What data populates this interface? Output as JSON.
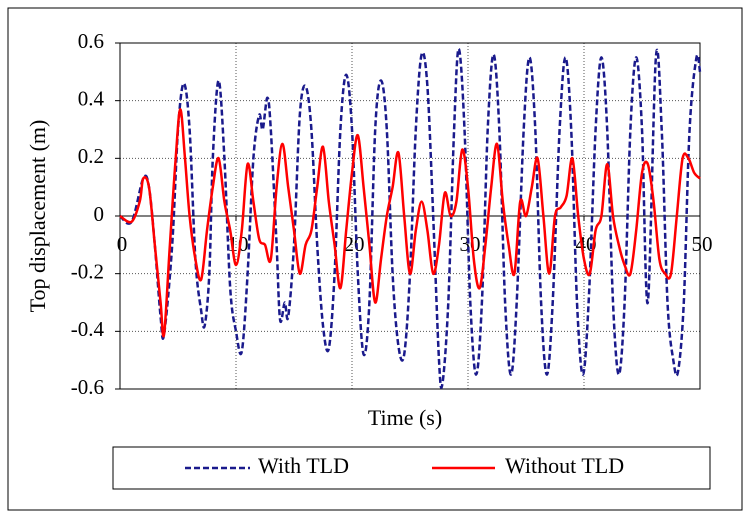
{
  "chart_data": {
    "type": "line",
    "xlabel": "Time (s)",
    "ylabel": "Top displacement (m)",
    "xlim": [
      0,
      50
    ],
    "ylim": [
      -0.6,
      0.6
    ],
    "xticks": [
      0,
      10,
      20,
      30,
      40,
      50
    ],
    "yticks": [
      -0.6,
      -0.4,
      -0.2,
      0,
      0.2,
      0.4,
      0.6
    ],
    "grid": true,
    "legend": "bottom",
    "series": [
      {
        "name": "With TLD",
        "color": "#1a1a8c",
        "dash": true,
        "x": [
          0,
          1,
          2,
          2.5,
          3,
          3.5,
          3.8,
          4.5,
          5,
          5.5,
          6,
          6.5,
          7,
          7.3,
          7.7,
          8,
          8.5,
          9,
          9.5,
          10,
          10.5,
          11,
          11.5,
          12,
          12.3,
          12.7,
          13,
          13.5,
          13.8,
          14.2,
          14.5,
          15,
          15.5,
          16,
          16.5,
          17,
          17.5,
          18,
          18.5,
          19,
          19.5,
          20,
          20.5,
          21,
          21.5,
          22,
          22.5,
          23,
          23.5,
          24,
          24.5,
          25,
          25.5,
          26,
          26.5,
          27,
          27.5,
          27.8,
          28.3,
          28.8,
          29.2,
          29.7,
          30.2,
          30.7,
          31.2,
          31.7,
          32.2,
          32.7,
          33.2,
          33.7,
          34.2,
          34.8,
          35.3,
          35.8,
          36.3,
          36.8,
          37.3,
          37.9,
          38.4,
          38.9,
          39.4,
          39.9,
          40.4,
          41,
          41.5,
          42,
          42.5,
          43,
          43.5,
          44,
          44.5,
          45,
          45.5,
          46.2,
          46.7,
          47.2,
          47.7,
          48.1,
          48.6,
          49.1,
          49.7,
          50
        ],
        "values": [
          0,
          -0.02,
          0.13,
          0.1,
          -0.1,
          -0.35,
          -0.41,
          -0.1,
          0.3,
          0.46,
          0.3,
          -0.15,
          -0.33,
          -0.38,
          -0.2,
          0.2,
          0.47,
          0.2,
          -0.25,
          -0.4,
          -0.47,
          -0.2,
          0.2,
          0.35,
          0.3,
          0.41,
          0.3,
          -0.1,
          -0.36,
          -0.3,
          -0.35,
          -0.1,
          0.35,
          0.45,
          0.3,
          -0.1,
          -0.38,
          -0.46,
          -0.2,
          0.3,
          0.49,
          0.3,
          -0.2,
          -0.48,
          -0.3,
          0.3,
          0.47,
          0.3,
          -0.2,
          -0.45,
          -0.48,
          -0.2,
          0.3,
          0.56,
          0.45,
          0,
          -0.5,
          -0.58,
          -0.3,
          0.3,
          0.58,
          0.3,
          -0.3,
          -0.55,
          -0.3,
          0.3,
          0.56,
          0.3,
          -0.3,
          -0.55,
          -0.3,
          0.3,
          0.55,
          0.3,
          -0.3,
          -0.55,
          -0.3,
          0.3,
          0.55,
          0.3,
          -0.3,
          -0.55,
          -0.3,
          0.3,
          0.55,
          0.3,
          -0.3,
          -0.55,
          -0.3,
          0.3,
          0.55,
          0.3,
          -0.3,
          0.55,
          0.3,
          -0.3,
          -0.5,
          -0.54,
          -0.3,
          0.3,
          0.55,
          0.5
        ]
      },
      {
        "name": "Without TLD",
        "color": "#ff0000",
        "dash": false,
        "x": [
          0,
          1,
          1.7,
          2,
          2.5,
          3,
          3.5,
          3.8,
          4.3,
          4.8,
          5.2,
          5.6,
          6,
          6.5,
          7,
          7.5,
          8,
          8.5,
          9,
          9.5,
          10,
          10.5,
          11,
          11.5,
          12,
          12.5,
          13,
          13.5,
          14,
          14.5,
          15,
          15.5,
          16,
          16.5,
          17,
          17.5,
          18,
          18.5,
          19,
          19.5,
          20,
          20.5,
          21,
          21.5,
          22,
          22.5,
          23,
          23.5,
          24,
          24.5,
          25,
          25.5,
          26,
          26.5,
          27,
          27.5,
          28,
          28.5,
          29,
          29.5,
          30,
          30.5,
          31,
          31.5,
          32,
          32.5,
          33,
          33.5,
          34,
          34.5,
          35,
          35.5,
          36,
          36.5,
          37,
          37.5,
          38,
          38.5,
          39,
          39.5,
          40,
          40.5,
          41,
          41.5,
          42,
          42.5,
          43,
          43.5,
          44,
          44.5,
          45,
          45.5,
          46,
          46.5,
          47,
          47.5,
          48,
          48.5,
          49,
          49.5,
          50
        ],
        "values": [
          0,
          -0.02,
          0.05,
          0.13,
          0.1,
          -0.1,
          -0.3,
          -0.41,
          -0.1,
          0.2,
          0.37,
          0.2,
          0,
          -0.15,
          -0.22,
          -0.05,
          0.1,
          0.2,
          0.05,
          -0.05,
          -0.17,
          -0.05,
          0.18,
          0.05,
          -0.08,
          -0.1,
          -0.15,
          0.1,
          0.25,
          0.1,
          -0.05,
          -0.2,
          -0.1,
          -0.05,
          0.1,
          0.24,
          0.05,
          -0.1,
          -0.25,
          -0.05,
          0.15,
          0.28,
          0.1,
          -0.1,
          -0.3,
          -0.15,
          0,
          0.1,
          0.22,
          0,
          -0.2,
          -0.05,
          0.05,
          -0.05,
          -0.2,
          -0.1,
          0.08,
          0,
          0.05,
          0.23,
          0.1,
          -0.15,
          -0.25,
          -0.1,
          0.1,
          0.25,
          0.05,
          -0.1,
          -0.2,
          0.05,
          0,
          0.1,
          0.2,
          0,
          -0.2,
          0,
          0.03,
          0.07,
          0.2,
          0,
          -0.15,
          -0.2,
          -0.05,
          0,
          0.18,
          0,
          -0.1,
          -0.17,
          -0.2,
          -0.05,
          0.15,
          0.18,
          0.05,
          -0.15,
          -0.2,
          -0.2,
          0,
          0.2,
          0.2,
          0.15,
          0.13
        ]
      }
    ]
  }
}
